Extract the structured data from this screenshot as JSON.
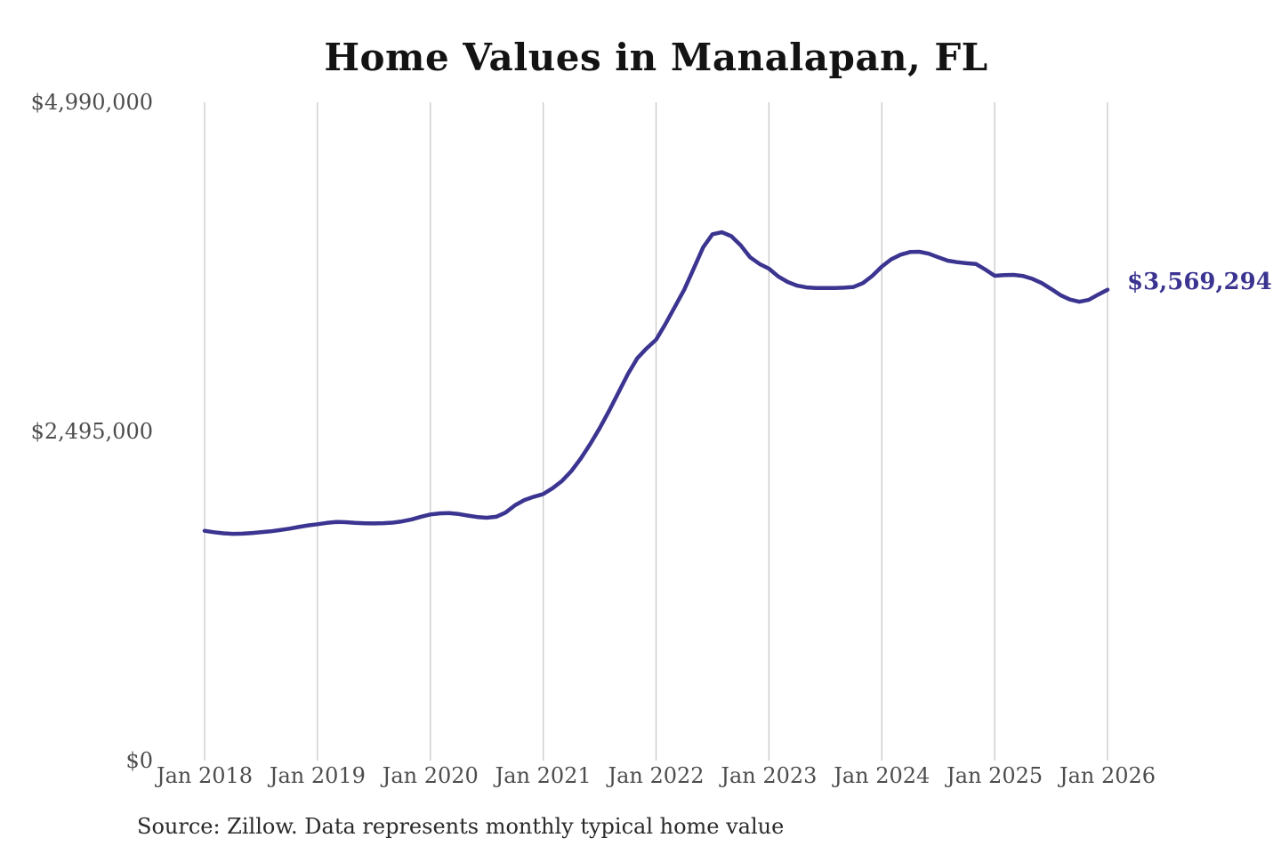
{
  "page": {
    "background": "#ffffff"
  },
  "chart_data": {
    "type": "line",
    "title": "Home Values in Manalapan, FL",
    "source_note": "Source: Zillow. Data represents monthly typical home value",
    "end_value_label": "$3,569,294",
    "end_value": 3569294,
    "x_tick_labels": [
      "Jan 2018",
      "Jan 2019",
      "Jan 2020",
      "Jan 2021",
      "Jan 2022",
      "Jan 2023",
      "Jan 2024",
      "Jan 2025",
      "Jan 2026"
    ],
    "y_tick_labels": [
      "$0",
      "$2,495,000",
      "$4,990,000"
    ],
    "y_ticks": [
      0,
      2495000,
      4990000
    ],
    "ylim": [
      0,
      4990000
    ],
    "x_unit": "month",
    "x_range": [
      "Jan 2018",
      "Jan 2026"
    ],
    "grid": "vertical-only",
    "legend": "none",
    "line_color": "#3b3490",
    "grid_color": "#c9c9c9",
    "tick_label_color": "#4d4d4d",
    "series": [
      {
        "name": "Monthly typical home value",
        "points_per_year": 12,
        "values": [
          1742000,
          1731000,
          1723000,
          1719000,
          1720000,
          1725000,
          1731000,
          1738000,
          1747000,
          1758000,
          1771000,
          1783000,
          1792000,
          1802000,
          1809000,
          1807000,
          1802000,
          1799000,
          1798000,
          1800000,
          1804000,
          1813000,
          1828000,
          1848000,
          1866000,
          1874000,
          1876000,
          1869000,
          1857000,
          1846000,
          1841000,
          1848000,
          1880000,
          1935000,
          1975000,
          2000000,
          2020000,
          2065000,
          2120000,
          2195000,
          2290000,
          2400000,
          2520000,
          2650000,
          2790000,
          2930000,
          3050000,
          3125000,
          3190000,
          3310000,
          3440000,
          3570000,
          3730000,
          3890000,
          3990000,
          4005000,
          3975000,
          3905000,
          3815000,
          3765000,
          3729000,
          3670000,
          3628000,
          3600000,
          3587000,
          3583000,
          3582000,
          3583000,
          3585000,
          3590000,
          3620000,
          3675000,
          3745000,
          3800000,
          3835000,
          3855000,
          3857000,
          3842000,
          3815000,
          3790000,
          3778000,
          3770000,
          3765000,
          3722000,
          3675000,
          3680000,
          3682000,
          3674000,
          3652000,
          3620000,
          3575000,
          3528000,
          3495000,
          3478000,
          3492000,
          3532000,
          3569294
        ]
      }
    ]
  }
}
